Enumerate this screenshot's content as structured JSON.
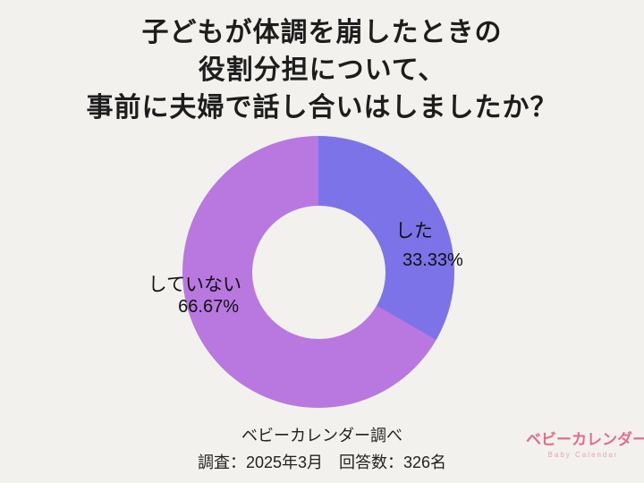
{
  "title": {
    "line1": "子どもが体調を崩したときの",
    "line2": "役割分担について、",
    "line3": "事前に夫婦で話し合いはしましたか？"
  },
  "chart_data": {
    "type": "pie",
    "subtype": "donut",
    "title": "子どもが体調を崩したときの役割分担について、事前に夫婦で話し合いはしましたか？",
    "categories": [
      "した",
      "していない"
    ],
    "values": [
      33.33,
      66.67
    ],
    "colors": [
      "#7b73e7",
      "#b878e0"
    ],
    "labels": [
      {
        "name": "した",
        "pct": "33.33%"
      },
      {
        "name": "していない",
        "pct": "66.67%"
      }
    ],
    "start_angle_deg": 0,
    "direction": "clockwise",
    "hole_ratio": 0.49,
    "legend": "none"
  },
  "footer": {
    "source": "ベビーカレンダー調べ",
    "survey": "調査：2025年3月　回答数：326名"
  },
  "logo": {
    "name": "ベビーカレンダー",
    "subtitle": "Baby Calendar"
  },
  "colors": {
    "background": "#f2f1ee",
    "text": "#1d1d1d",
    "slice_shita": "#7b73e7",
    "slice_shiteinai": "#b878e0",
    "logo_pink": "#e56b8e",
    "logo_pink_light": "#ef9fb4"
  }
}
